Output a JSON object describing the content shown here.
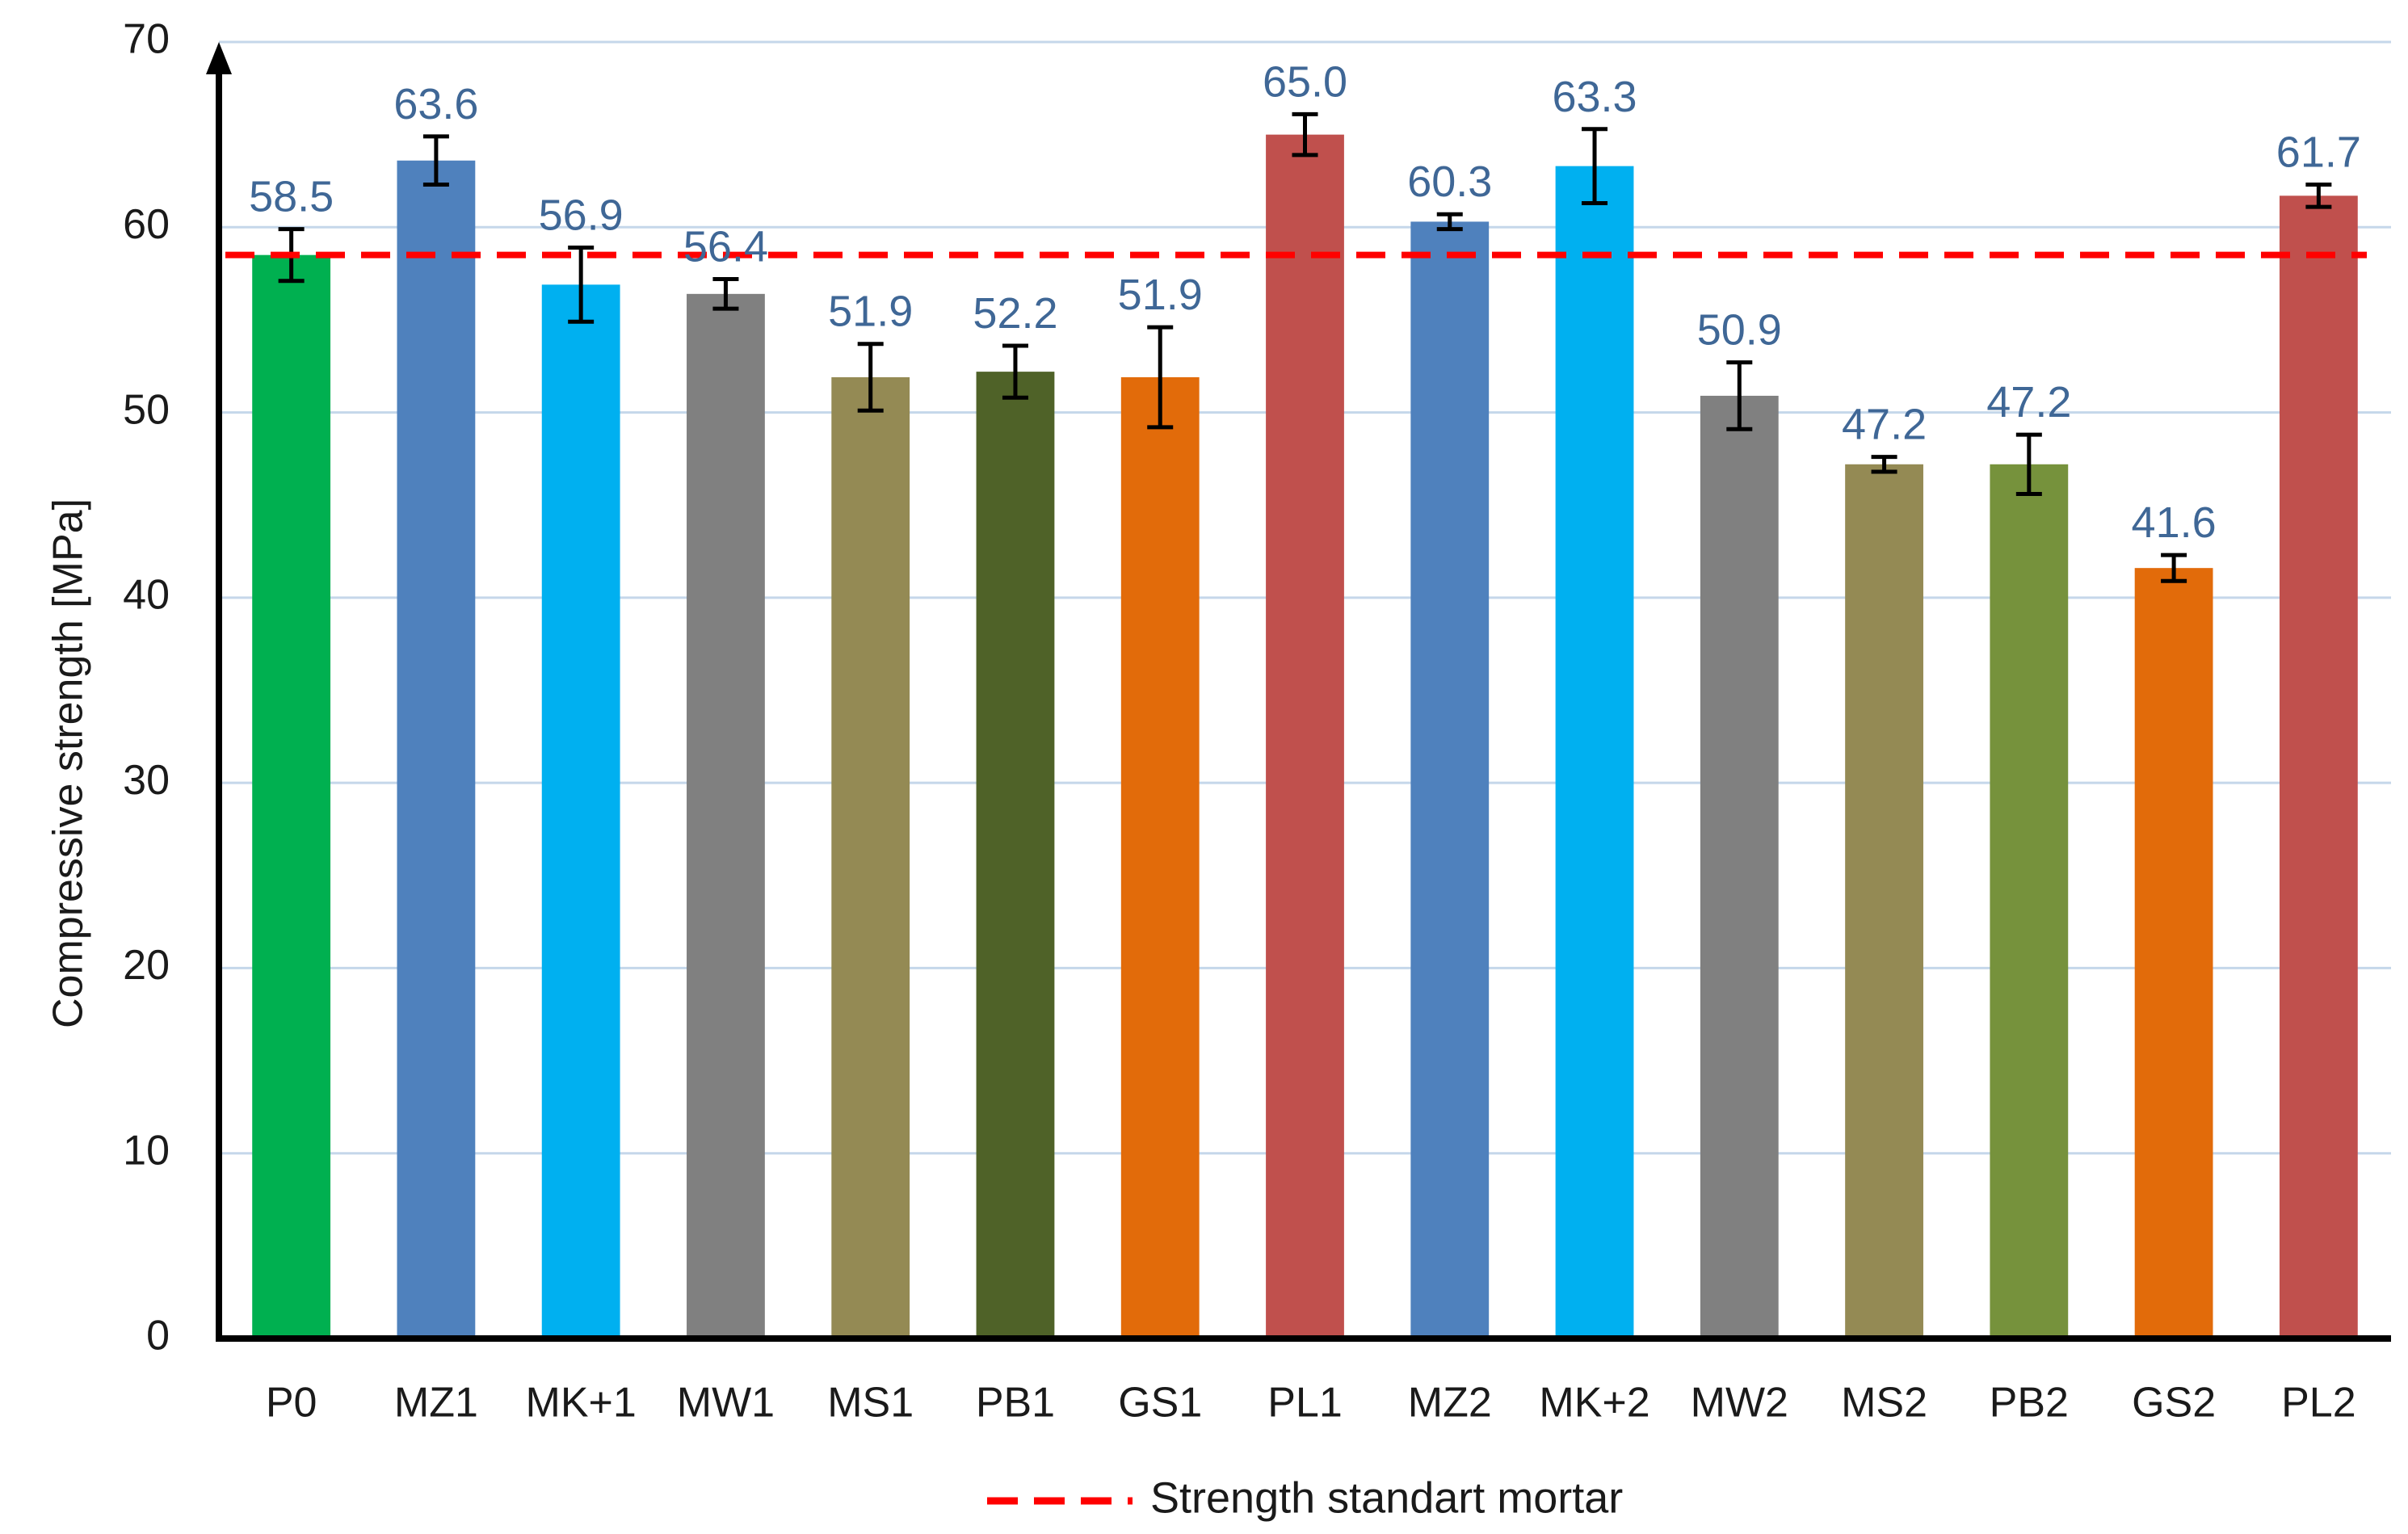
{
  "chart_data": {
    "type": "bar",
    "title": "",
    "xlabel": "",
    "ylabel": "Compressive strength [MPa]",
    "ylim": [
      0,
      70
    ],
    "yticks": [
      0,
      10,
      20,
      30,
      40,
      50,
      60,
      70
    ],
    "categories": [
      "P0",
      "MZ1",
      "MK+1",
      "MW1",
      "MS1",
      "PB1",
      "GS1",
      "PL1",
      "MZ2",
      "MK+2",
      "MW2",
      "MS2",
      "PB2",
      "GS2",
      "PL2"
    ],
    "values": [
      58.5,
      63.6,
      56.9,
      56.4,
      51.9,
      52.2,
      51.9,
      65.0,
      60.3,
      63.3,
      50.9,
      47.2,
      47.2,
      41.6,
      61.7
    ],
    "value_labels": [
      "58.5",
      "63.6",
      "56.9",
      "56.4",
      "51.9",
      "52.2",
      "51.9",
      "65.0",
      "60.3",
      "63.3",
      "50.9",
      "47.2",
      "47.2",
      "41.6",
      "61.7"
    ],
    "errors": [
      1.4,
      1.3,
      2.0,
      0.8,
      1.8,
      1.4,
      2.7,
      1.1,
      0.4,
      2.0,
      1.8,
      0.4,
      1.6,
      0.7,
      0.6
    ],
    "colors": [
      "#00b050",
      "#4f81bd",
      "#00b0f0",
      "#808080",
      "#948a54",
      "#4f6228",
      "#e26b0a",
      "#c0504d",
      "#4f81bd",
      "#00b0f0",
      "#808080",
      "#948a54",
      "#76923c",
      "#e26b0a",
      "#c0504d"
    ],
    "reference_line": {
      "label": "Strength standart mortar",
      "value": 58.5,
      "color": "#ff0000"
    },
    "grid": true,
    "legend": "bottom-center"
  }
}
